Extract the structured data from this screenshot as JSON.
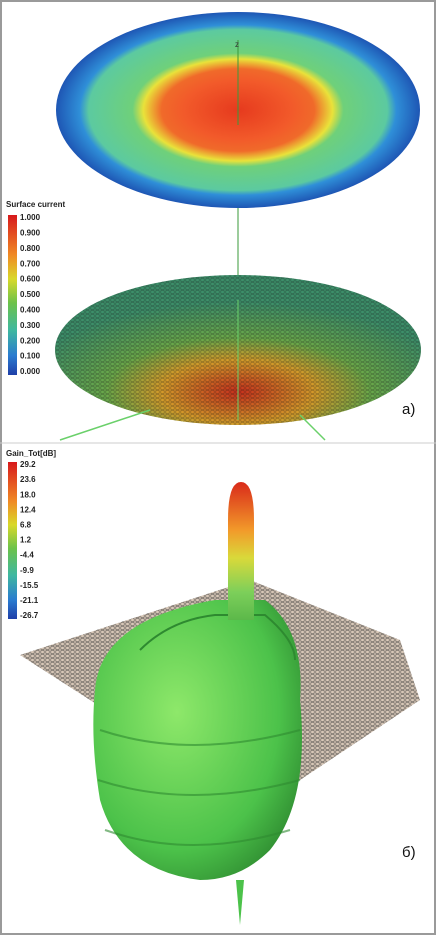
{
  "panels": [
    {
      "axis_label": "z",
      "legend": {
        "title": "Surface current",
        "ticks": [
          "1.000",
          "0.900",
          "0.800",
          "0.700",
          "0.600",
          "0.500",
          "0.400",
          "0.300",
          "0.200",
          "0.100",
          "0.000"
        ]
      },
      "label": "a)"
    },
    {
      "legend": {
        "title": "Gain_Tot[dB]",
        "ticks": [
          "29.2",
          "23.6",
          "18.0",
          "12.4",
          "6.8",
          "1.2",
          "-4.4",
          "-9.9",
          "-15.5",
          "-21.1",
          "-26.7"
        ]
      },
      "label": "б)"
    }
  ]
}
